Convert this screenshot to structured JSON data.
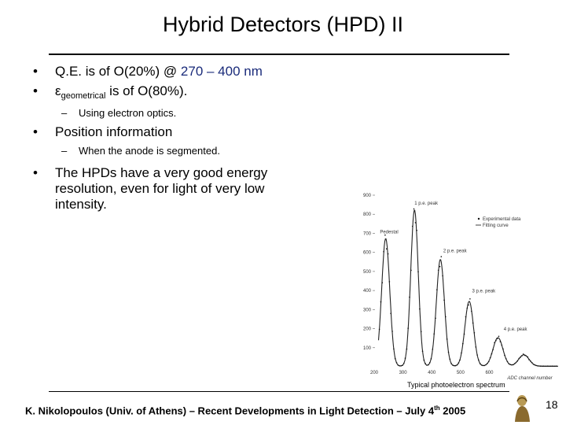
{
  "slide": {
    "title": "Hybrid Detectors (HPD) II",
    "bullets": [
      {
        "prefix": "Q.E. is of O(20%) @ ",
        "highlight": "270 – 400 nm"
      },
      {
        "epsilon": "ε",
        "sub": "geometrical",
        "suffix": " is of O(80%)."
      }
    ],
    "sub_bullet_1": "Using electron optics.",
    "bullet_3": "Position information",
    "sub_bullet_2": "When the anode is segmented.",
    "bullet_4_lines": [
      "The HPDs have a very good energy",
      "resolution, even for light of very low",
      "intensity."
    ],
    "caption": "Typical photoelectron spectrum",
    "footer": {
      "text": "K. Nikolopoulos (Univ. of Athens) – Recent Developments in Light Detection – July 4",
      "sup": "th",
      "year": "  2005"
    },
    "page_number": "18"
  },
  "chart_data": {
    "type": "scatter",
    "title": "",
    "xlabel": "ADC channel number",
    "ylabel": "",
    "xlim": [
      200,
      850
    ],
    "ylim": [
      0,
      900
    ],
    "x_ticks": [
      "200",
      "300",
      "400",
      "500",
      "600"
    ],
    "y_ticks": [
      "900",
      "800",
      "700",
      "600",
      "500",
      "400",
      "300",
      "200",
      "100"
    ],
    "legend": [
      "Experimental data",
      "Fitting curve"
    ],
    "annotations": [
      "1 p.e. peak",
      "Pedestal",
      "2 p.e. peak",
      "3 p.e. peak",
      "4 p.e. peak"
    ],
    "peaks": [
      {
        "name": "Pedestal",
        "x": 240,
        "y": 670
      },
      {
        "name": "1 p.e. peak",
        "x": 340,
        "y": 820
      },
      {
        "name": "2 p.e. peak",
        "x": 430,
        "y": 560
      },
      {
        "name": "3 p.e. peak",
        "x": 530,
        "y": 340
      },
      {
        "name": "4 p.e. peak",
        "x": 630,
        "y": 150
      },
      {
        "name": "",
        "x": 720,
        "y": 60
      }
    ]
  }
}
